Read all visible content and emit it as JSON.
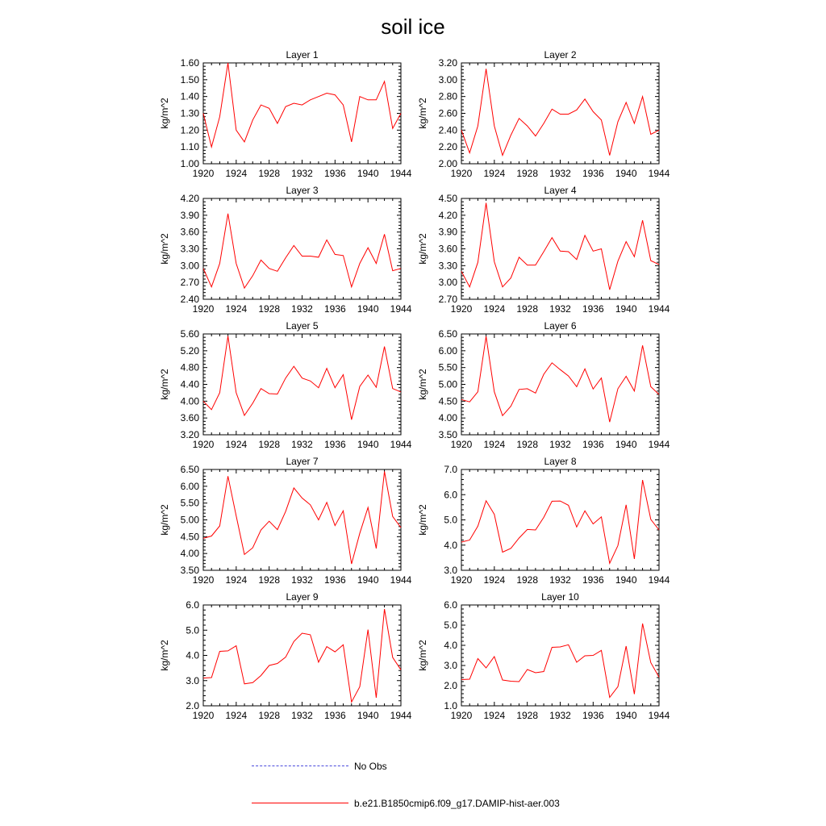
{
  "title": "soil ice",
  "legend": {
    "items": [
      {
        "label": "No Obs",
        "color": "#4a4adc",
        "style": "dashed"
      },
      {
        "label": "b.e21.B1850cmip6.f09_g17.DAMIP-hist-aer.003",
        "color": "#ff0000",
        "style": "solid"
      }
    ]
  },
  "chart_data": [
    {
      "type": "line",
      "title": "Layer 1",
      "ylabel": "kg/m^2",
      "xlim": [
        1920,
        1944
      ],
      "ylim": [
        1.0,
        1.6
      ],
      "xticks": [
        "1920",
        "1924",
        "1928",
        "1932",
        "1936",
        "1940",
        "1944"
      ],
      "yticks": [
        "1.00",
        "1.10",
        "1.20",
        "1.30",
        "1.40",
        "1.50",
        "1.60"
      ],
      "series": [
        {
          "color": "#ff0000",
          "x": [
            1920,
            1921,
            1922,
            1923,
            1924,
            1925,
            1926,
            1927,
            1928,
            1929,
            1930,
            1931,
            1932,
            1933,
            1934,
            1935,
            1936,
            1937,
            1938,
            1939,
            1940,
            1941,
            1942,
            1943,
            1944
          ],
          "values": [
            1.3,
            1.1,
            1.28,
            1.6,
            1.2,
            1.13,
            1.26,
            1.35,
            1.33,
            1.24,
            1.34,
            1.36,
            1.35,
            1.38,
            1.4,
            1.42,
            1.41,
            1.35,
            1.13,
            1.4,
            1.38,
            1.38,
            1.49,
            1.21,
            1.3
          ]
        }
      ]
    },
    {
      "type": "line",
      "title": "Layer 2",
      "ylabel": "kg/m^2",
      "xlim": [
        1920,
        1944
      ],
      "ylim": [
        2.0,
        3.2
      ],
      "xticks": [
        "1920",
        "1924",
        "1928",
        "1932",
        "1936",
        "1940",
        "1944"
      ],
      "yticks": [
        "2.00",
        "2.20",
        "2.40",
        "2.60",
        "2.80",
        "3.00",
        "3.20"
      ],
      "series": [
        {
          "color": "#ff0000",
          "x": [
            1920,
            1921,
            1922,
            1923,
            1924,
            1925,
            1926,
            1927,
            1928,
            1929,
            1930,
            1931,
            1932,
            1933,
            1934,
            1935,
            1936,
            1937,
            1938,
            1939,
            1940,
            1941,
            1942,
            1943,
            1944
          ],
          "values": [
            2.4,
            2.13,
            2.45,
            3.13,
            2.45,
            2.1,
            2.34,
            2.54,
            2.45,
            2.33,
            2.48,
            2.65,
            2.59,
            2.59,
            2.64,
            2.77,
            2.62,
            2.52,
            2.1,
            2.5,
            2.73,
            2.48,
            2.8,
            2.35,
            2.4
          ]
        }
      ]
    },
    {
      "type": "line",
      "title": "Layer 3",
      "ylabel": "kg/m^2",
      "xlim": [
        1920,
        1944
      ],
      "ylim": [
        2.4,
        4.2
      ],
      "xticks": [
        "1920",
        "1924",
        "1928",
        "1932",
        "1936",
        "1940",
        "1944"
      ],
      "yticks": [
        "2.40",
        "2.70",
        "3.00",
        "3.30",
        "3.60",
        "3.90",
        "4.20"
      ],
      "series": [
        {
          "color": "#ff0000",
          "x": [
            1920,
            1921,
            1922,
            1923,
            1924,
            1925,
            1926,
            1927,
            1928,
            1929,
            1930,
            1931,
            1932,
            1933,
            1934,
            1935,
            1936,
            1937,
            1938,
            1939,
            1940,
            1941,
            1942,
            1943,
            1944
          ],
          "values": [
            2.95,
            2.62,
            3.04,
            3.93,
            3.04,
            2.6,
            2.82,
            3.1,
            2.95,
            2.9,
            3.14,
            3.36,
            3.17,
            3.17,
            3.15,
            3.46,
            3.2,
            3.18,
            2.62,
            3.04,
            3.32,
            3.04,
            3.56,
            2.91,
            2.95
          ]
        }
      ]
    },
    {
      "type": "line",
      "title": "Layer 4",
      "ylabel": "kg/m^2",
      "xlim": [
        1920,
        1944
      ],
      "ylim": [
        2.7,
        4.5
      ],
      "xticks": [
        "1920",
        "1924",
        "1928",
        "1932",
        "1936",
        "1940",
        "1944"
      ],
      "yticks": [
        "2.70",
        "3.00",
        "3.30",
        "3.60",
        "3.90",
        "4.20",
        "4.50"
      ],
      "series": [
        {
          "color": "#ff0000",
          "x": [
            1920,
            1921,
            1922,
            1923,
            1924,
            1925,
            1926,
            1927,
            1928,
            1929,
            1930,
            1931,
            1932,
            1933,
            1934,
            1935,
            1936,
            1937,
            1938,
            1939,
            1940,
            1941,
            1942,
            1943,
            1944
          ],
          "values": [
            3.2,
            2.92,
            3.36,
            4.42,
            3.37,
            2.92,
            3.08,
            3.45,
            3.31,
            3.31,
            3.55,
            3.8,
            3.56,
            3.55,
            3.41,
            3.84,
            3.56,
            3.6,
            2.87,
            3.38,
            3.73,
            3.46,
            4.11,
            3.39,
            3.32
          ]
        }
      ]
    },
    {
      "type": "line",
      "title": "Layer 5",
      "ylabel": "kg/m^2",
      "xlim": [
        1920,
        1944
      ],
      "ylim": [
        3.2,
        5.6
      ],
      "xticks": [
        "1920",
        "1924",
        "1928",
        "1932",
        "1936",
        "1940",
        "1944"
      ],
      "yticks": [
        "3.20",
        "3.60",
        "4.00",
        "4.40",
        "4.80",
        "5.20",
        "5.60"
      ],
      "series": [
        {
          "color": "#ff0000",
          "x": [
            1920,
            1921,
            1922,
            1923,
            1924,
            1925,
            1926,
            1927,
            1928,
            1929,
            1930,
            1931,
            1932,
            1933,
            1934,
            1935,
            1936,
            1937,
            1938,
            1939,
            1940,
            1941,
            1942,
            1943,
            1944
          ],
          "values": [
            4.0,
            3.8,
            4.2,
            5.55,
            4.2,
            3.66,
            3.95,
            4.3,
            4.18,
            4.17,
            4.55,
            4.83,
            4.55,
            4.48,
            4.32,
            4.78,
            4.32,
            4.63,
            3.56,
            4.35,
            4.62,
            4.33,
            5.3,
            4.3,
            4.22
          ]
        }
      ]
    },
    {
      "type": "line",
      "title": "Layer 6",
      "ylabel": "kg/m^2",
      "xlim": [
        1920,
        1944
      ],
      "ylim": [
        3.5,
        6.5
      ],
      "xticks": [
        "1920",
        "1924",
        "1928",
        "1932",
        "1936",
        "1940",
        "1944"
      ],
      "yticks": [
        "3.50",
        "4.00",
        "4.50",
        "5.00",
        "5.50",
        "6.00",
        "6.50"
      ],
      "series": [
        {
          "color": "#ff0000",
          "x": [
            1920,
            1921,
            1922,
            1923,
            1924,
            1925,
            1926,
            1927,
            1928,
            1929,
            1930,
            1931,
            1932,
            1933,
            1934,
            1935,
            1936,
            1937,
            1938,
            1939,
            1940,
            1941,
            1942,
            1943,
            1944
          ],
          "values": [
            4.55,
            4.48,
            4.78,
            6.43,
            4.78,
            4.07,
            4.35,
            4.85,
            4.87,
            4.74,
            5.3,
            5.64,
            5.44,
            5.25,
            4.93,
            5.46,
            4.86,
            5.19,
            3.88,
            4.87,
            5.24,
            4.8,
            6.16,
            4.93,
            4.7
          ]
        }
      ]
    },
    {
      "type": "line",
      "title": "Layer 7",
      "ylabel": "kg/m^2",
      "xlim": [
        1920,
        1944
      ],
      "ylim": [
        3.5,
        6.5
      ],
      "xticks": [
        "1920",
        "1924",
        "1928",
        "1932",
        "1936",
        "1940",
        "1944"
      ],
      "yticks": [
        "3.50",
        "4.00",
        "4.50",
        "5.00",
        "5.50",
        "6.00",
        "6.50"
      ],
      "series": [
        {
          "color": "#ff0000",
          "x": [
            1920,
            1921,
            1922,
            1923,
            1924,
            1925,
            1926,
            1927,
            1928,
            1929,
            1930,
            1931,
            1932,
            1933,
            1934,
            1935,
            1936,
            1937,
            1938,
            1939,
            1940,
            1941,
            1942,
            1943,
            1944
          ],
          "values": [
            4.45,
            4.52,
            4.82,
            6.3,
            5.12,
            3.97,
            4.17,
            4.7,
            4.96,
            4.71,
            5.25,
            5.95,
            5.65,
            5.45,
            5.0,
            5.52,
            4.83,
            5.27,
            3.69,
            4.6,
            5.37,
            4.15,
            6.44,
            5.1,
            4.77
          ]
        }
      ]
    },
    {
      "type": "line",
      "title": "Layer 8",
      "ylabel": "kg/m^2",
      "xlim": [
        1920,
        1944
      ],
      "ylim": [
        3.0,
        7.0
      ],
      "xticks": [
        "1920",
        "1924",
        "1928",
        "1932",
        "1936",
        "1940",
        "1944"
      ],
      "yticks": [
        "3.0",
        "4.0",
        "5.0",
        "6.0",
        "7.0"
      ],
      "series": [
        {
          "color": "#ff0000",
          "x": [
            1920,
            1921,
            1922,
            1923,
            1924,
            1925,
            1926,
            1927,
            1928,
            1929,
            1930,
            1931,
            1932,
            1933,
            1934,
            1935,
            1936,
            1937,
            1938,
            1939,
            1940,
            1941,
            1942,
            1943,
            1944
          ],
          "values": [
            4.12,
            4.2,
            4.75,
            5.76,
            5.22,
            3.72,
            3.87,
            4.28,
            4.62,
            4.6,
            5.1,
            5.74,
            5.75,
            5.58,
            4.72,
            5.36,
            4.84,
            5.12,
            3.28,
            3.98,
            5.6,
            3.45,
            6.58,
            5.02,
            4.6
          ]
        }
      ]
    },
    {
      "type": "line",
      "title": "Layer 9",
      "ylabel": "kg/m^2",
      "xlim": [
        1920,
        1944
      ],
      "ylim": [
        2.0,
        6.0
      ],
      "xticks": [
        "1920",
        "1924",
        "1928",
        "1932",
        "1936",
        "1940",
        "1944"
      ],
      "yticks": [
        "2.0",
        "3.0",
        "4.0",
        "5.0",
        "6.0"
      ],
      "series": [
        {
          "color": "#ff0000",
          "x": [
            1920,
            1921,
            1922,
            1923,
            1924,
            1925,
            1926,
            1927,
            1928,
            1929,
            1930,
            1931,
            1932,
            1933,
            1934,
            1935,
            1936,
            1937,
            1938,
            1939,
            1940,
            1941,
            1942,
            1943,
            1944
          ],
          "values": [
            3.1,
            3.12,
            4.16,
            4.18,
            4.38,
            2.87,
            2.92,
            3.2,
            3.6,
            3.68,
            3.93,
            4.55,
            4.88,
            4.82,
            3.73,
            4.35,
            4.14,
            4.42,
            2.15,
            2.76,
            5.02,
            2.32,
            5.84,
            3.92,
            3.43
          ]
        }
      ]
    },
    {
      "type": "line",
      "title": "Layer 10",
      "ylabel": "kg/m^2",
      "xlim": [
        1920,
        1944
      ],
      "ylim": [
        1.0,
        6.0
      ],
      "xticks": [
        "1920",
        "1924",
        "1928",
        "1932",
        "1936",
        "1940",
        "1944"
      ],
      "yticks": [
        "1.0",
        "2.0",
        "3.0",
        "4.0",
        "5.0",
        "6.0"
      ],
      "series": [
        {
          "color": "#ff0000",
          "x": [
            1920,
            1921,
            1922,
            1923,
            1924,
            1925,
            1926,
            1927,
            1928,
            1929,
            1930,
            1931,
            1932,
            1933,
            1934,
            1935,
            1936,
            1937,
            1938,
            1939,
            1940,
            1941,
            1942,
            1943,
            1944
          ],
          "values": [
            2.3,
            2.32,
            3.34,
            2.88,
            3.44,
            2.28,
            2.22,
            2.2,
            2.8,
            2.64,
            2.7,
            3.9,
            3.92,
            4.03,
            3.16,
            3.48,
            3.5,
            3.75,
            1.42,
            1.95,
            3.96,
            1.58,
            5.08,
            3.14,
            2.42
          ]
        }
      ]
    }
  ]
}
